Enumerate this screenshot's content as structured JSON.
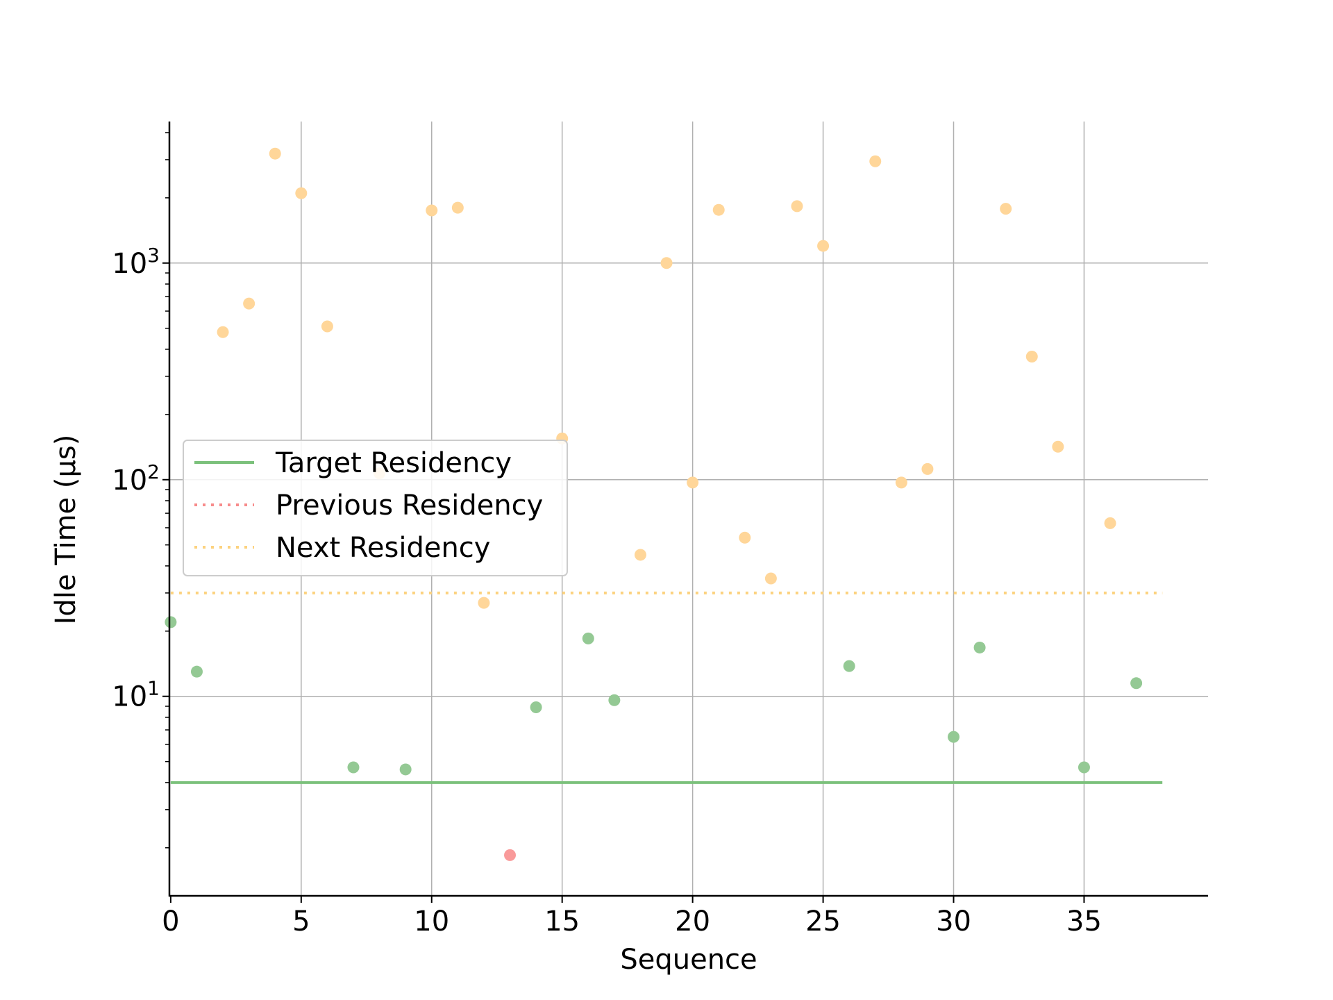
{
  "chart_data": {
    "type": "scatter",
    "title": "",
    "xlabel": "Sequence",
    "ylabel": "Idle Time (µs)",
    "xlim": [
      0,
      40
    ],
    "ylim": [
      1.2,
      4500
    ],
    "yscale": "log",
    "grid": true,
    "legend_placement": "center-left",
    "x_ticks": [
      0,
      5,
      10,
      15,
      20,
      25,
      30,
      35
    ],
    "y_ticks": [
      {
        "value": 10,
        "base": "10",
        "exp": "1"
      },
      {
        "value": 100,
        "base": "10",
        "exp": "2"
      },
      {
        "value": 1000,
        "base": "10",
        "exp": "3"
      }
    ],
    "lines": [
      {
        "name": "Target Residency",
        "y": 4,
        "x_range": [
          0,
          38
        ],
        "style": "solid",
        "color": "#7bc17b"
      },
      {
        "name": "Previous Residency",
        "y": null,
        "x_range": [
          0,
          38
        ],
        "style": "dotted",
        "color": "#f78b8b"
      },
      {
        "name": "Next Residency",
        "y": 30,
        "x_range": [
          0,
          38
        ],
        "style": "dotted",
        "color": "#fcd27f"
      }
    ],
    "legend": [
      {
        "name": "Target Residency",
        "style": "solid",
        "color": "#7bc17b"
      },
      {
        "name": "Previous Residency",
        "style": "dotted",
        "color": "#f78b8b"
      },
      {
        "name": "Next Residency",
        "style": "dotted",
        "color": "#fcd27f"
      }
    ],
    "point_colors": {
      "green": "#94c994",
      "orange": "#ffd699",
      "red": "#f99a9a"
    },
    "points": [
      {
        "x": 0,
        "y": 22,
        "c": "green"
      },
      {
        "x": 1,
        "y": 13,
        "c": "green"
      },
      {
        "x": 2,
        "y": 480,
        "c": "orange"
      },
      {
        "x": 3,
        "y": 650,
        "c": "orange"
      },
      {
        "x": 4,
        "y": 3200,
        "c": "orange"
      },
      {
        "x": 5,
        "y": 2100,
        "c": "orange"
      },
      {
        "x": 6,
        "y": 510,
        "c": "orange"
      },
      {
        "x": 7,
        "y": 4.7,
        "c": "green"
      },
      {
        "x": 8,
        "y": 107,
        "c": "orange"
      },
      {
        "x": 9,
        "y": 4.6,
        "c": "green"
      },
      {
        "x": 10,
        "y": 1750,
        "c": "orange"
      },
      {
        "x": 11,
        "y": 1800,
        "c": "orange"
      },
      {
        "x": 12,
        "y": 27,
        "c": "orange"
      },
      {
        "x": 13,
        "y": 1.85,
        "c": "red"
      },
      {
        "x": 14,
        "y": 8.9,
        "c": "green"
      },
      {
        "x": 15,
        "y": 155,
        "c": "orange"
      },
      {
        "x": 16,
        "y": 18.5,
        "c": "green"
      },
      {
        "x": 17,
        "y": 9.6,
        "c": "green"
      },
      {
        "x": 18,
        "y": 45,
        "c": "orange"
      },
      {
        "x": 19,
        "y": 1000,
        "c": "orange"
      },
      {
        "x": 20,
        "y": 97,
        "c": "orange"
      },
      {
        "x": 21,
        "y": 1760,
        "c": "orange"
      },
      {
        "x": 22,
        "y": 54,
        "c": "orange"
      },
      {
        "x": 23,
        "y": 35,
        "c": "orange"
      },
      {
        "x": 24,
        "y": 1830,
        "c": "orange"
      },
      {
        "x": 25,
        "y": 1200,
        "c": "orange"
      },
      {
        "x": 26,
        "y": 13.8,
        "c": "green"
      },
      {
        "x": 27,
        "y": 2950,
        "c": "orange"
      },
      {
        "x": 28,
        "y": 97,
        "c": "orange"
      },
      {
        "x": 29,
        "y": 112,
        "c": "orange"
      },
      {
        "x": 30,
        "y": 6.5,
        "c": "green"
      },
      {
        "x": 31,
        "y": 16.8,
        "c": "green"
      },
      {
        "x": 32,
        "y": 1780,
        "c": "orange"
      },
      {
        "x": 33,
        "y": 370,
        "c": "orange"
      },
      {
        "x": 34,
        "y": 142,
        "c": "orange"
      },
      {
        "x": 35,
        "y": 4.7,
        "c": "green"
      },
      {
        "x": 36,
        "y": 63,
        "c": "orange"
      },
      {
        "x": 37,
        "y": 11.5,
        "c": "green"
      }
    ]
  }
}
